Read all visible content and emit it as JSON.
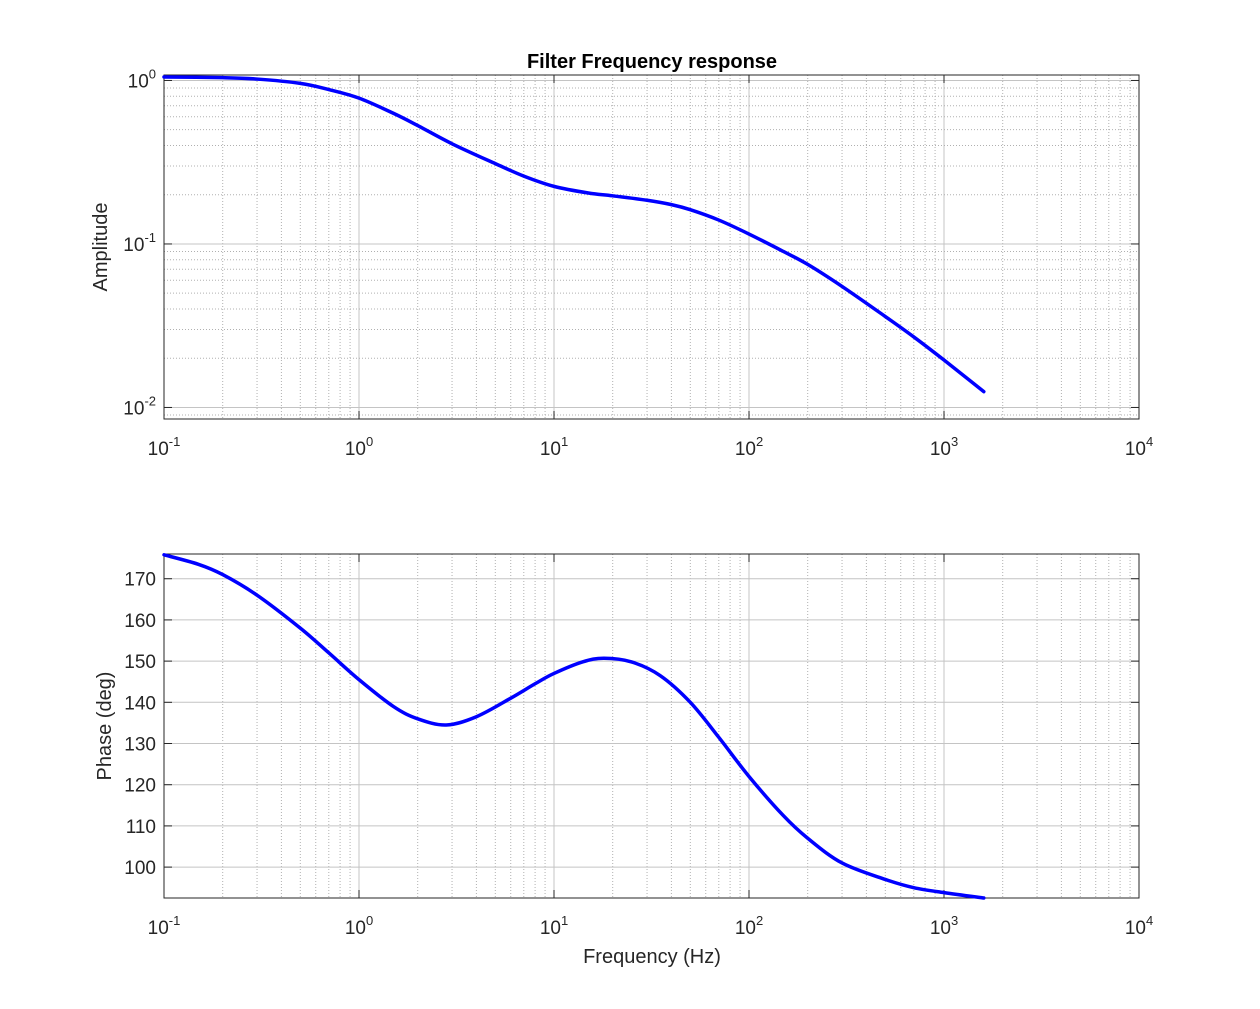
{
  "chart_data": [
    {
      "type": "line",
      "title": "Filter Frequency response",
      "xlabel": "",
      "ylabel": "Amplitude",
      "xscale": "log",
      "yscale": "log",
      "xlim": [
        0.1,
        10000
      ],
      "ylim": [
        0.0085,
        1.08
      ],
      "grid": true,
      "x_ticks": [
        {
          "base": "10",
          "exp": "-1"
        },
        {
          "base": "10",
          "exp": "0"
        },
        {
          "base": "10",
          "exp": "1"
        },
        {
          "base": "10",
          "exp": "2"
        },
        {
          "base": "10",
          "exp": "3"
        },
        {
          "base": "10",
          "exp": "4"
        }
      ],
      "y_ticks": [
        {
          "value": 1,
          "base": "10",
          "exp": "0"
        },
        {
          "value": 0.1,
          "base": "10",
          "exp": "-1"
        },
        {
          "value": 0.01,
          "base": "10",
          "exp": "-2"
        }
      ],
      "series": [
        {
          "color": "#0000ff",
          "x": [
            0.1,
            0.2,
            0.3,
            0.5,
            0.7,
            1,
            1.5,
            2,
            3,
            5,
            7,
            10,
            15,
            20,
            30,
            40,
            50,
            70,
            100,
            150,
            200,
            300,
            500,
            700,
            1000,
            1600
          ],
          "y": [
            1.05,
            1.04,
            1.02,
            0.96,
            0.88,
            0.78,
            0.63,
            0.53,
            0.41,
            0.31,
            0.26,
            0.225,
            0.205,
            0.197,
            0.185,
            0.174,
            0.162,
            0.14,
            0.115,
            0.09,
            0.075,
            0.055,
            0.036,
            0.027,
            0.0195,
            0.0125
          ]
        }
      ]
    },
    {
      "type": "line",
      "title": "",
      "xlabel": "Frequency (Hz)",
      "ylabel": "Phase (deg)",
      "xscale": "log",
      "yscale": "linear",
      "xlim": [
        0.1,
        10000
      ],
      "ylim": [
        92.5,
        176
      ],
      "grid": true,
      "x_ticks": [
        {
          "base": "10",
          "exp": "-1"
        },
        {
          "base": "10",
          "exp": "0"
        },
        {
          "base": "10",
          "exp": "1"
        },
        {
          "base": "10",
          "exp": "2"
        },
        {
          "base": "10",
          "exp": "3"
        },
        {
          "base": "10",
          "exp": "4"
        }
      ],
      "y_ticks": [
        "100",
        "110",
        "120",
        "130",
        "140",
        "150",
        "160",
        "170"
      ],
      "series": [
        {
          "color": "#0000ff",
          "x": [
            0.1,
            0.15,
            0.2,
            0.3,
            0.5,
            0.7,
            1,
            1.5,
            2,
            2.8,
            4,
            6,
            8,
            10,
            14,
            18,
            25,
            35,
            50,
            70,
            100,
            150,
            200,
            300,
            500,
            700,
            1000,
            1600
          ],
          "y": [
            175.8,
            173.5,
            171,
            166,
            158,
            152,
            145.5,
            139,
            136,
            134.5,
            136.5,
            141,
            144.5,
            147,
            149.8,
            150.7,
            149.8,
            146.5,
            140,
            131.5,
            122,
            112.5,
            107,
            101,
            97,
            95,
            93.8,
            92.5
          ]
        }
      ]
    }
  ]
}
